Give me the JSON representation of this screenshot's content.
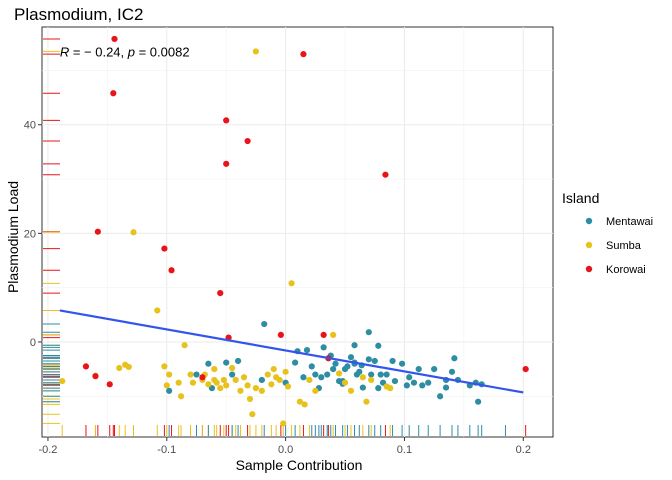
{
  "chart_data": {
    "type": "scatter",
    "title": "Plasmodium, IC2",
    "xlabel": "Sample Contribution",
    "ylabel": "Plasmodium Load",
    "xlim": [
      -0.205,
      0.225
    ],
    "ylim": [
      -17.5,
      58
    ],
    "x_ticks": [
      -0.2,
      -0.1,
      0.0,
      0.1,
      0.2
    ],
    "x_tick_labels": [
      "-0.2",
      "-0.1",
      "0.0",
      "0.1",
      "0.2"
    ],
    "y_ticks": [
      0,
      20,
      40
    ],
    "y_tick_labels": [
      "0",
      "20",
      "40"
    ],
    "grid": true,
    "annotation": {
      "r_symbol": "R",
      "r_value": " = − 0.24, ",
      "p_symbol": "p",
      "p_value": " = 0.0082",
      "x": -0.19,
      "y": 53.5
    },
    "regression_line": {
      "x": [
        -0.19,
        0.2
      ],
      "y": [
        5.8,
        -9.3
      ],
      "color": "#3355ee"
    },
    "legend": {
      "title": "Island",
      "position": "right",
      "entries": [
        {
          "label": "Mentawai",
          "color": "#2e8da3"
        },
        {
          "label": "Sumba",
          "color": "#e8c21c"
        },
        {
          "label": "Korowai",
          "color": "#e8141a"
        }
      ]
    },
    "series": [
      {
        "name": "Mentawai",
        "color": "#2e8da3",
        "points": [
          [
            -0.018,
            3.3
          ],
          [
            -0.04,
            -3.5
          ],
          [
            -0.065,
            -4
          ],
          [
            -0.075,
            -6
          ],
          [
            -0.098,
            -9
          ],
          [
            -0.062,
            -8.5
          ],
          [
            -0.05,
            -3.8
          ],
          [
            -0.045,
            -6
          ],
          [
            -0.02,
            -7
          ],
          [
            0.0,
            -7.5
          ],
          [
            0.008,
            -3.8
          ],
          [
            0.015,
            -6.5
          ],
          [
            0.022,
            -4.5
          ],
          [
            0.025,
            -6
          ],
          [
            0.028,
            -8.5
          ],
          [
            0.03,
            -6.5
          ],
          [
            0.032,
            -1
          ],
          [
            0.035,
            -6
          ],
          [
            0.038,
            -2.5
          ],
          [
            0.04,
            -5
          ],
          [
            0.042,
            -4
          ],
          [
            0.045,
            -7.2
          ],
          [
            0.048,
            -7.7
          ],
          [
            0.05,
            -5
          ],
          [
            0.052,
            -4.5
          ],
          [
            0.055,
            -2.8
          ],
          [
            0.058,
            -4
          ],
          [
            0.06,
            -6
          ],
          [
            0.062,
            -5.5
          ],
          [
            0.064,
            -4.3
          ],
          [
            0.058,
            -0.6
          ],
          [
            0.058,
            -3.8
          ],
          [
            0.07,
            -3.2
          ],
          [
            0.072,
            -6
          ],
          [
            0.075,
            -3.5
          ],
          [
            0.078,
            -8.5
          ],
          [
            0.08,
            -6
          ],
          [
            0.082,
            -7.5
          ],
          [
            0.085,
            -6
          ],
          [
            0.09,
            -3.5
          ],
          [
            0.092,
            -7.2
          ],
          [
            0.098,
            -4
          ],
          [
            0.102,
            -8
          ],
          [
            0.104,
            -6.5
          ],
          [
            0.108,
            -7.5
          ],
          [
            0.112,
            -5
          ],
          [
            0.115,
            -8
          ],
          [
            0.12,
            -7.5
          ],
          [
            0.125,
            -5
          ],
          [
            0.13,
            -10
          ],
          [
            0.135,
            -7
          ],
          [
            0.14,
            -5.5
          ],
          [
            0.142,
            -3
          ],
          [
            0.145,
            -7
          ],
          [
            0.155,
            -8
          ],
          [
            0.16,
            -7.5
          ],
          [
            0.165,
            -7.8
          ],
          [
            0.162,
            -11
          ],
          [
            0.018,
            -1.5
          ],
          [
            0.01,
            -1.7
          ],
          [
            0.048,
            -7.2
          ],
          [
            0.065,
            -8.4
          ],
          [
            0.07,
            1.8
          ],
          [
            0.078,
            -0.7
          ],
          [
            0.135,
            -8.4
          ]
        ]
      },
      {
        "name": "Sumba",
        "color": "#e8c21c",
        "points": [
          [
            -0.025,
            53.5
          ],
          [
            0.005,
            10.8
          ],
          [
            -0.128,
            20.2
          ],
          [
            -0.108,
            5.8
          ],
          [
            -0.188,
            -7.2
          ],
          [
            -0.16,
            -6.2
          ],
          [
            -0.14,
            -4.8
          ],
          [
            -0.135,
            -4.2
          ],
          [
            -0.132,
            -4.6
          ],
          [
            -0.102,
            -4.5
          ],
          [
            -0.098,
            -6
          ],
          [
            -0.1,
            -8
          ],
          [
            -0.09,
            -7.5
          ],
          [
            -0.088,
            -10
          ],
          [
            -0.08,
            -6
          ],
          [
            -0.078,
            -7.5
          ],
          [
            -0.07,
            -7
          ],
          [
            -0.068,
            -6
          ],
          [
            -0.065,
            -7.8
          ],
          [
            -0.06,
            -5
          ],
          [
            -0.058,
            -7.5
          ],
          [
            -0.055,
            -8.5
          ],
          [
            -0.052,
            -7
          ],
          [
            -0.05,
            -8
          ],
          [
            -0.045,
            -4.8
          ],
          [
            -0.042,
            -7
          ],
          [
            -0.038,
            -9
          ],
          [
            -0.035,
            -6.5
          ],
          [
            -0.032,
            -8
          ],
          [
            -0.03,
            -10.5
          ],
          [
            -0.028,
            -13.3
          ],
          [
            -0.025,
            -8.5
          ],
          [
            -0.02,
            -9
          ],
          [
            -0.015,
            -6
          ],
          [
            -0.012,
            -7.8
          ],
          [
            -0.01,
            -5
          ],
          [
            -0.008,
            -6.5
          ],
          [
            -0.005,
            -7
          ],
          [
            -0.002,
            -15
          ],
          [
            0.0,
            -5.5
          ],
          [
            0.002,
            -8.2
          ],
          [
            0.012,
            -11
          ],
          [
            0.016,
            -11.5
          ],
          [
            0.02,
            -7
          ],
          [
            0.025,
            -9
          ],
          [
            0.04,
            1.3
          ],
          [
            0.045,
            -5.8
          ],
          [
            0.05,
            -7.5
          ],
          [
            0.055,
            -9
          ],
          [
            0.065,
            -6.5
          ],
          [
            0.068,
            -11
          ],
          [
            0.072,
            -7
          ],
          [
            0.085,
            -8.2
          ],
          [
            0.088,
            -8.5
          ],
          [
            -0.085,
            -0.6
          ],
          [
            -0.06,
            -7
          ]
        ]
      },
      {
        "name": "Korowai",
        "color": "#e8141a",
        "points": [
          [
            -0.144,
            55.8
          ],
          [
            -0.145,
            45.8
          ],
          [
            0.015,
            53
          ],
          [
            -0.05,
            40.8
          ],
          [
            -0.032,
            37
          ],
          [
            -0.05,
            32.8
          ],
          [
            0.084,
            30.8
          ],
          [
            -0.158,
            20.3
          ],
          [
            -0.102,
            17.2
          ],
          [
            -0.096,
            13.2
          ],
          [
            -0.055,
            9
          ],
          [
            -0.048,
            0.8
          ],
          [
            -0.004,
            1.3
          ],
          [
            0.032,
            1.3
          ],
          [
            -0.168,
            -4.5
          ],
          [
            -0.16,
            -6.3
          ],
          [
            -0.148,
            -7.8
          ],
          [
            -0.07,
            -6.5
          ],
          [
            0.036,
            -3
          ],
          [
            0.202,
            -5
          ]
        ]
      }
    ],
    "y_rug": [
      {
        "color": "#e8141a",
        "values": [
          55.8,
          53,
          45.8,
          40.8,
          37,
          32.8,
          30.8,
          20.3,
          17.2,
          13.2,
          9,
          1.3,
          0.8,
          -3,
          -4.5,
          -5,
          -6.3,
          -6.5,
          -7.8
        ]
      },
      {
        "color": "#e8c21c",
        "values": [
          53.5,
          20.2,
          10.8,
          5.8,
          1.3,
          -0.6,
          -4.2,
          -4.8,
          -5.5,
          -6,
          -7,
          -7.5,
          -8,
          -8.5,
          -9,
          -10,
          -10.5,
          -11,
          -11.5,
          -13.3,
          -15
        ]
      },
      {
        "color": "#2e8da3",
        "values": [
          3.3,
          1.8,
          -0.6,
          -1,
          -1.5,
          -2.5,
          -2.8,
          -3,
          -3.5,
          -4,
          -4.5,
          -5,
          -5.5,
          -6,
          -6.5,
          -7,
          -7.5,
          -8,
          -8.5,
          -9,
          -10,
          -11
        ]
      }
    ],
    "x_rug": [
      {
        "color": "#e8141a",
        "values": [
          -0.168,
          -0.16,
          -0.158,
          -0.148,
          -0.145,
          -0.144,
          -0.102,
          -0.096,
          -0.07,
          -0.055,
          -0.05,
          -0.048,
          -0.032,
          -0.004,
          0.015,
          0.032,
          0.036,
          0.084,
          0.202
        ]
      },
      {
        "color": "#e8c21c",
        "values": [
          -0.188,
          -0.16,
          -0.14,
          -0.135,
          -0.128,
          -0.108,
          -0.1,
          -0.09,
          -0.088,
          -0.08,
          -0.07,
          -0.065,
          -0.06,
          -0.058,
          -0.052,
          -0.045,
          -0.042,
          -0.038,
          -0.03,
          -0.025,
          -0.02,
          -0.012,
          -0.008,
          -0.002,
          0.005,
          0.012,
          0.02,
          0.04,
          0.05,
          0.055,
          0.065,
          0.072,
          0.088
        ]
      },
      {
        "color": "#2e8da3",
        "values": [
          -0.098,
          -0.075,
          -0.065,
          -0.045,
          -0.04,
          -0.018,
          0.0,
          0.008,
          0.022,
          0.025,
          0.028,
          0.03,
          0.035,
          0.038,
          0.042,
          0.048,
          0.052,
          0.058,
          0.062,
          0.07,
          0.075,
          0.08,
          0.09,
          0.098,
          0.104,
          0.112,
          0.12,
          0.13,
          0.14,
          0.145,
          0.155,
          0.162,
          0.165,
          0.185
        ]
      }
    ]
  }
}
